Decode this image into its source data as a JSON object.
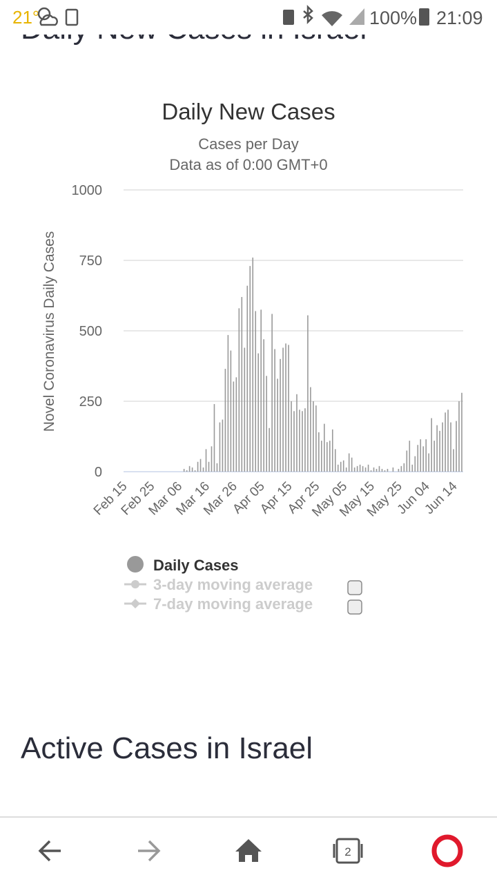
{
  "status_bar": {
    "temperature": "21°",
    "battery": "100%",
    "time": "21:09"
  },
  "section_heading_top": "Daily New Cases in Israel",
  "section_heading_next": "Active Cases in Israel",
  "nav": {
    "tab_count": "2"
  },
  "chart_data": {
    "type": "bar",
    "title": "Daily New Cases",
    "subtitle": [
      "Cases per Day",
      "Data as of 0:00 GMT+0"
    ],
    "y_label": "Novel Coronavirus Daily Cases",
    "categories": [
      "Feb 15",
      null,
      null,
      null,
      null,
      null,
      null,
      null,
      null,
      null,
      "Feb 25",
      null,
      null,
      null,
      null,
      null,
      null,
      null,
      null,
      null,
      "Mar 06",
      null,
      null,
      null,
      null,
      null,
      null,
      null,
      null,
      null,
      "Mar 16",
      null,
      null,
      null,
      null,
      null,
      null,
      null,
      null,
      null,
      "Mar 26",
      null,
      null,
      null,
      null,
      null,
      null,
      null,
      null,
      null,
      "Apr 05",
      null,
      null,
      null,
      null,
      null,
      null,
      null,
      null,
      null,
      "Apr 15",
      null,
      null,
      null,
      null,
      null,
      null,
      null,
      null,
      null,
      "Apr 25",
      null,
      null,
      null,
      null,
      null,
      null,
      null,
      null,
      null,
      "May 05",
      null,
      null,
      null,
      null,
      null,
      null,
      null,
      null,
      null,
      "May 15",
      null,
      null,
      null,
      null,
      null,
      null,
      null,
      null,
      null,
      "May 25",
      null,
      null,
      null,
      null,
      null,
      null,
      null,
      null,
      null,
      "Jun 04",
      null,
      null,
      null,
      null,
      null,
      null,
      null,
      null,
      null,
      "Jun 14",
      null,
      null,
      null
    ],
    "series": [
      {
        "name": "Daily Cases",
        "color": "#999999",
        "values": [
          0,
          0,
          0,
          0,
          0,
          0,
          0,
          0,
          0,
          0,
          0,
          0,
          0,
          0,
          0,
          0,
          0,
          0,
          0,
          0,
          0,
          0,
          10,
          5,
          20,
          15,
          5,
          35,
          45,
          15,
          80,
          35,
          90,
          240,
          30,
          175,
          185,
          365,
          485,
          430,
          320,
          335,
          580,
          620,
          440,
          660,
          730,
          760,
          570,
          420,
          575,
          470,
          340,
          155,
          560,
          435,
          330,
          400,
          440,
          455,
          450,
          250,
          215,
          275,
          220,
          215,
          225,
          555,
          300,
          250,
          235,
          140,
          110,
          170,
          105,
          110,
          150,
          80,
          25,
          35,
          40,
          15,
          65,
          50,
          15,
          20,
          25,
          20,
          15,
          25,
          5,
          15,
          10,
          20,
          10,
          5,
          10,
          0,
          15,
          0,
          10,
          20,
          30,
          75,
          110,
          25,
          55,
          95,
          115,
          90,
          115,
          65,
          190,
          110,
          165,
          145,
          175,
          210,
          220,
          175,
          80,
          180,
          250,
          280
        ]
      }
    ],
    "hidden_series": [
      "3-day moving average",
      "7-day moving average"
    ],
    "ylim": [
      0,
      1000
    ],
    "yticks": [
      0,
      250,
      500,
      750,
      1000
    ],
    "grid": true
  }
}
